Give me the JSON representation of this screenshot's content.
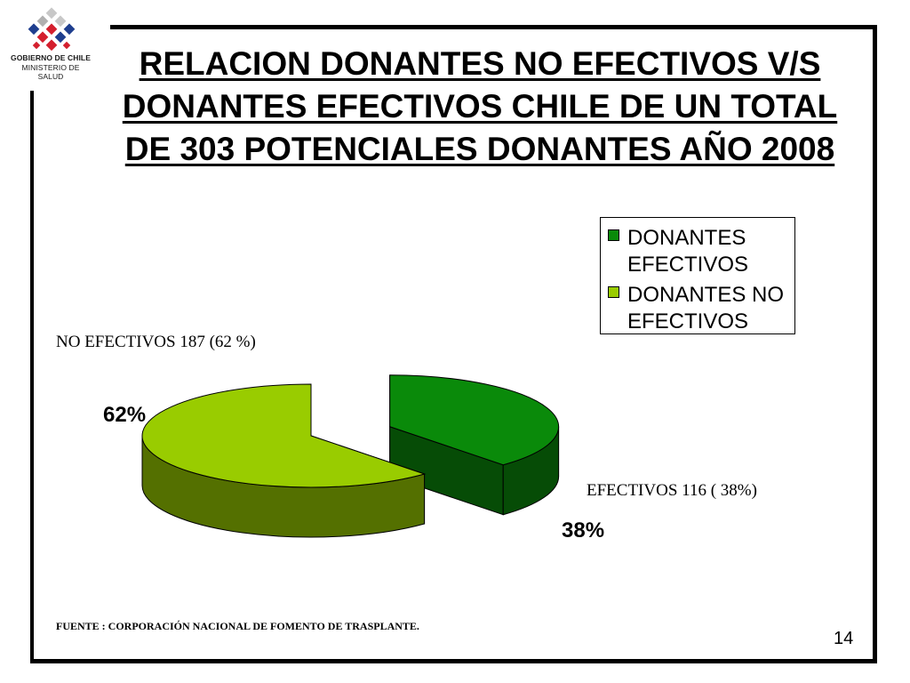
{
  "logo": {
    "line1": "GOBIERNO DE CHILE",
    "line2": "MINISTERIO DE SALUD"
  },
  "title": {
    "line1": "RELACION DONANTES NO EFECTIVOS V/S",
    "line2": "DONANTES EFECTIVOS CHILE DE UN TOTAL",
    "line3": "DE 303 POTENCIALES DONANTES AÑO 2008"
  },
  "chart_data": {
    "type": "pie",
    "title": "RELACION DONANTES NO EFECTIVOS V/S DONANTES EFECTIVOS CHILE DE UN TOTAL DE 303 POTENCIALES DONANTES AÑO 2008",
    "total": 303,
    "slices": [
      {
        "name": "DONANTES EFECTIVOS",
        "value": 116,
        "percent": 38,
        "percent_label": "38%",
        "color": "#0a8a0a",
        "exploded": true
      },
      {
        "name": "DONANTES NO EFECTIVOS",
        "value": 187,
        "percent": 62,
        "percent_label": "62%",
        "color": "#99cc00",
        "exploded": false
      }
    ],
    "legend": [
      "DONANTES\nEFECTIVOS",
      "DONANTES NO\nEFECTIVOS"
    ],
    "legend_position": "top-right",
    "annotations": {
      "no_efectivos": "NO EFECTIVOS 187 (62 %)",
      "efectivos": "EFECTIVOS  116 ( 38%)"
    }
  },
  "source": "FUENTE : CORPORACIÓN NACIONAL DE FOMENTO DE TRASPLANTE.",
  "page_number": "14"
}
